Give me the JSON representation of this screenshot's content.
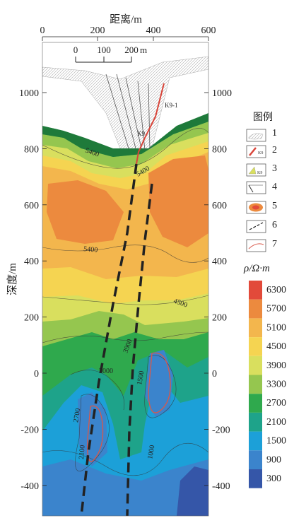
{
  "x_axis": {
    "label": "距离/m",
    "ticks": [
      "0",
      "200",
      "400",
      "600"
    ]
  },
  "y_axis": {
    "label": "深度/m",
    "ticks": [
      "1000",
      "800",
      "600",
      "400",
      "200",
      "0",
      "-200",
      "-400"
    ]
  },
  "scale_bar": {
    "ticks": [
      "0",
      "100",
      "200"
    ],
    "unit": "m"
  },
  "fault_labels": {
    "k9_1": "K9-1",
    "k9": "K9"
  },
  "contour_labels": [
    "5400",
    "5400",
    "5400",
    "4500",
    "3900",
    "3000",
    "2700",
    "2100",
    "1500",
    "1000"
  ],
  "legend": {
    "title": "图例",
    "items": [
      {
        "num": "1",
        "icon": "ore-body-section-icon"
      },
      {
        "num": "2",
        "icon": "red-fault-line-icon"
      },
      {
        "num": "3",
        "icon": "ore-vein-icon"
      },
      {
        "num": "4",
        "icon": "drill-hole-icon"
      },
      {
        "num": "5",
        "icon": "anomaly-icon"
      },
      {
        "num": "6",
        "icon": "dashed-fault-icon"
      },
      {
        "num": "7",
        "icon": "red-boundary-icon"
      }
    ]
  },
  "colorbar": {
    "title": "ρ/Ω·m",
    "levels": [
      "6300",
      "5700",
      "5100",
      "4500",
      "3900",
      "3300",
      "2700",
      "2100",
      "1500",
      "900",
      "300"
    ],
    "colors": [
      "#e24a3a",
      "#ec8a3e",
      "#f3b64d",
      "#f5d451",
      "#d9df5e",
      "#95c64f",
      "#2fa94d",
      "#1ea38a",
      "#1ca0d8",
      "#3b84cc",
      "#3556a8"
    ]
  }
}
